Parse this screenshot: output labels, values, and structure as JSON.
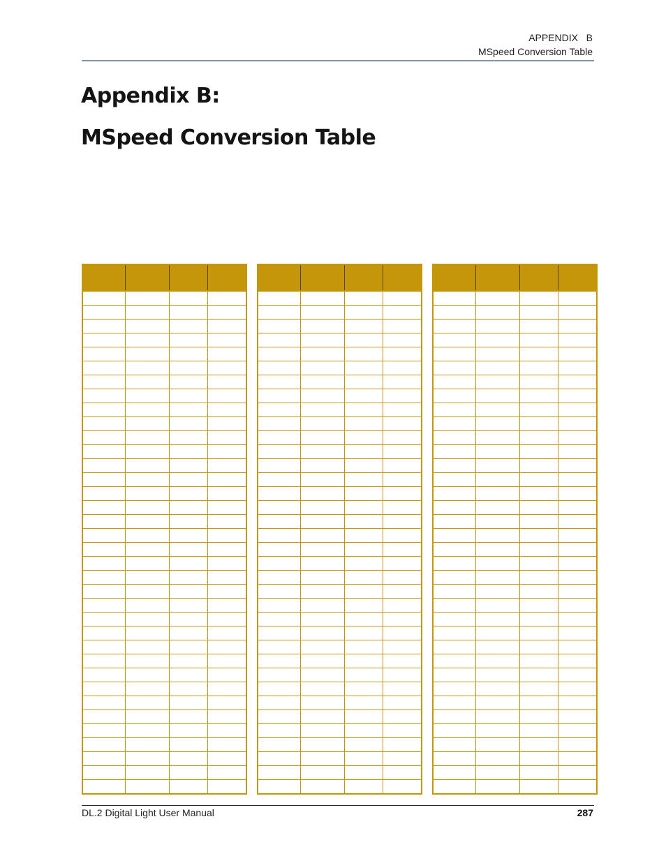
{
  "header": {
    "appendix": "APPENDIX   B",
    "section": "MSpeed Conversion Table"
  },
  "title": {
    "line1": "Appendix B:",
    "line2": "MSpeed Conversion Table"
  },
  "tables": [
    {
      "rows": 36,
      "columns": 4
    },
    {
      "rows": 36,
      "columns": 4
    },
    {
      "rows": 36,
      "columns": 4
    }
  ],
  "colors": {
    "header_fill": "#c6960a",
    "rule": "#7f95a6"
  },
  "footer": {
    "manual": "DL.2 Digital Light User Manual",
    "page_number": "287"
  }
}
